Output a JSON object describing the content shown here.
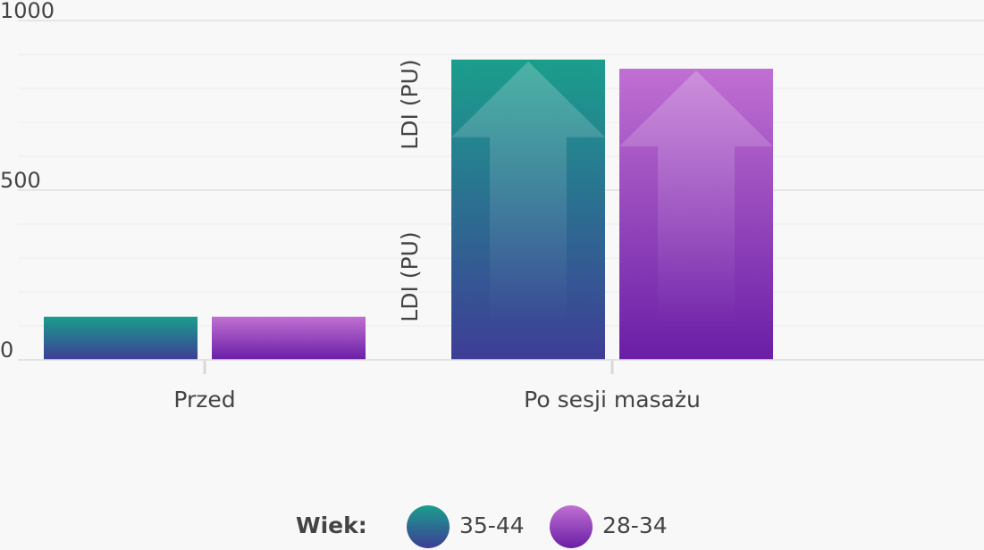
{
  "chart_data": {
    "type": "bar",
    "categories": [
      "Przed",
      "Po sesji masażu"
    ],
    "series": [
      {
        "name": "35-44",
        "values": [
          127,
          885
        ],
        "gradient": [
          "#1a9e8c",
          "#3e3d96"
        ]
      },
      {
        "name": "28-34",
        "values": [
          127,
          858
        ],
        "gradient": [
          "#b56ad0",
          "#6d20a8"
        ]
      }
    ],
    "ylim": [
      0,
      1000
    ],
    "yticks": [
      0,
      500,
      1000
    ],
    "ylabel": "LDI (PU)",
    "grid": true,
    "legend": {
      "title": "Wiek:",
      "placement": "bottom"
    }
  }
}
